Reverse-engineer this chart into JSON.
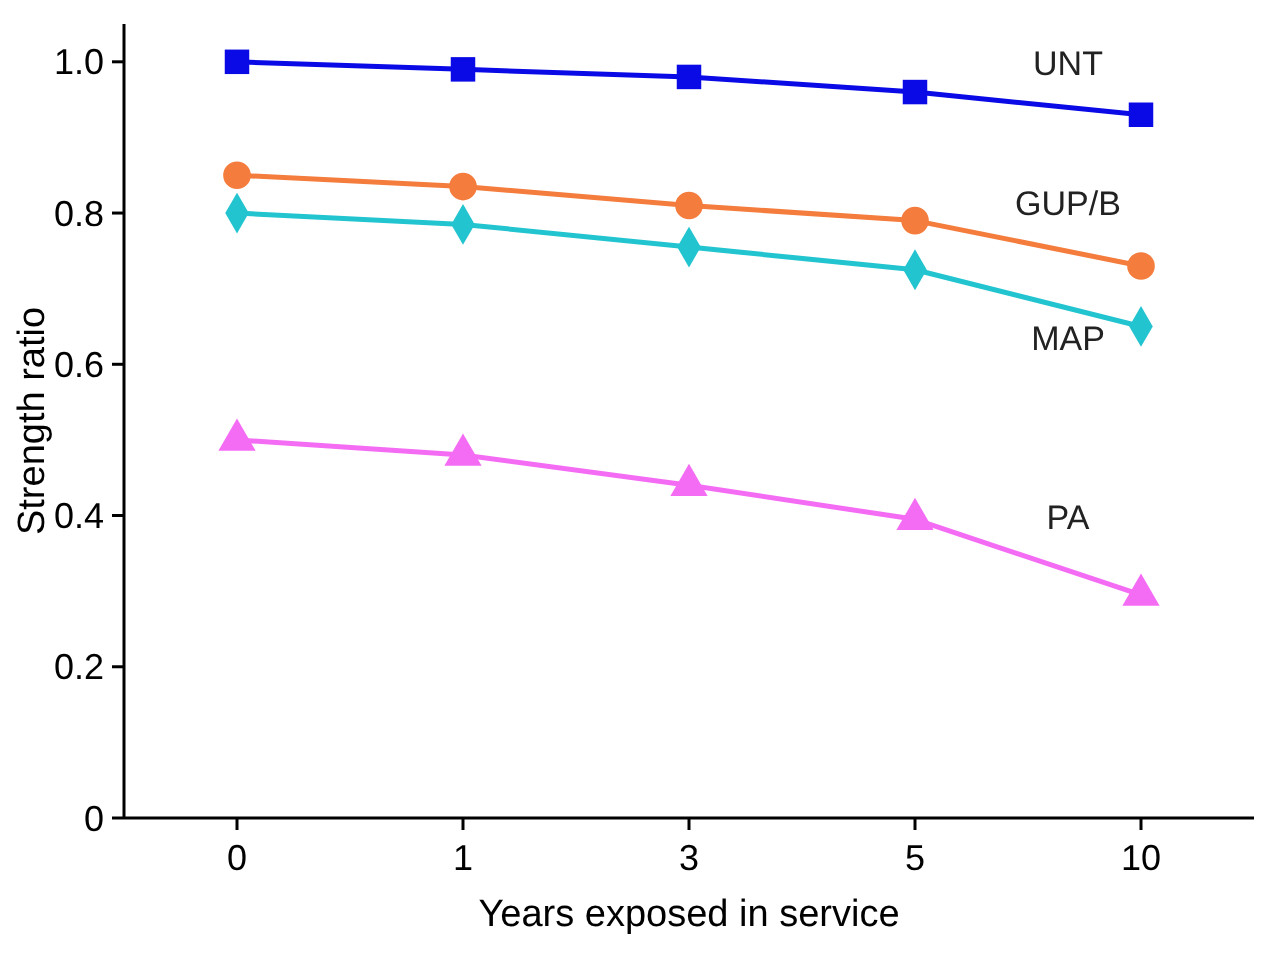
{
  "chart_data": {
    "type": "line",
    "xlabel": "Years exposed in service",
    "ylabel": "Strength ratio",
    "categories": [
      "0",
      "1",
      "3",
      "5",
      "10"
    ],
    "ylim": [
      0,
      1.05
    ],
    "yticks": [
      {
        "value": 0,
        "label": "0"
      },
      {
        "value": 0.2,
        "label": "0.2"
      },
      {
        "value": 0.4,
        "label": "0.4"
      },
      {
        "value": 0.6,
        "label": "0.6"
      },
      {
        "value": 0.8,
        "label": "0.8"
      },
      {
        "value": 1,
        "label": "1.0"
      }
    ],
    "grid": false,
    "series": [
      {
        "name": "UNT",
        "color": "#0a0ae6",
        "marker": "square",
        "values": [
          1.0,
          0.99,
          0.98,
          0.96,
          0.93
        ]
      },
      {
        "name": "GUP/B",
        "color": "#f47c3c",
        "marker": "circle",
        "values": [
          0.85,
          0.835,
          0.81,
          0.79,
          0.73
        ]
      },
      {
        "name": "MAP",
        "color": "#22c4d0",
        "marker": "diamond",
        "values": [
          0.8,
          0.785,
          0.755,
          0.725,
          0.65
        ]
      },
      {
        "name": "PA",
        "color": "#f46cf4",
        "marker": "triangle",
        "values": [
          0.5,
          0.48,
          0.44,
          0.395,
          0.295
        ]
      }
    ]
  }
}
